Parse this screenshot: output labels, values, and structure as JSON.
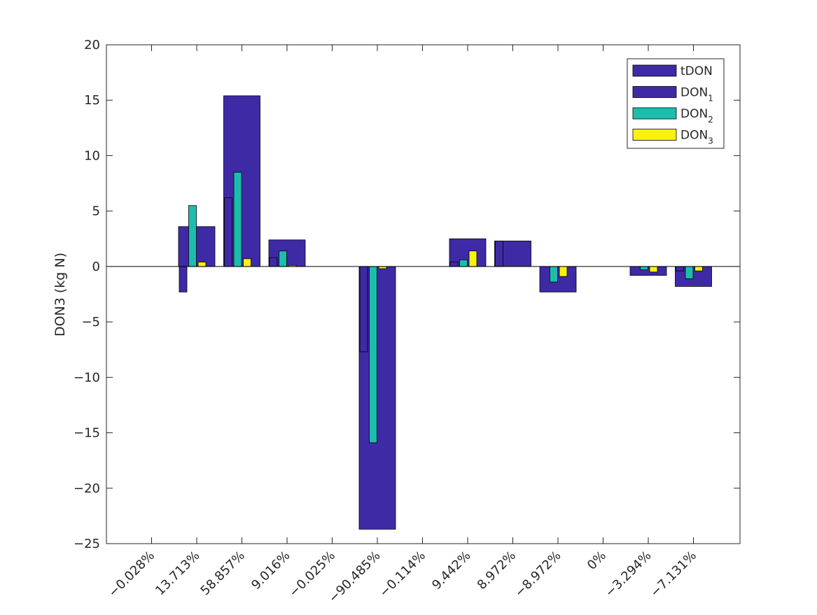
{
  "chart_data": {
    "type": "bar",
    "title": "",
    "xlabel": "",
    "ylabel": "DON3 (kg N)",
    "ylim": [
      -25,
      20
    ],
    "yticks": [
      -25,
      -20,
      -15,
      -10,
      -5,
      0,
      5,
      10,
      15,
      20
    ],
    "grid": false,
    "legend_position": "top-right",
    "categories": [
      "−0.028%",
      "13.713%",
      "58.857%",
      "9.016%",
      "−0.025%",
      "−90.485%",
      "−0.114%",
      "9.442%",
      "8.972%",
      "−8.972%",
      "0%",
      "−3.294%",
      "−7.131%"
    ],
    "series": [
      {
        "name": "tDON",
        "color": "#3f2aa6",
        "values": [
          0,
          3.6,
          15.4,
          2.4,
          0,
          -23.7,
          0,
          2.5,
          2.3,
          -2.3,
          0,
          -0.8,
          -1.8
        ]
      },
      {
        "name": "DON1",
        "color": "#3f2aa6",
        "values": [
          0,
          -2.3,
          6.2,
          0.8,
          0,
          -7.7,
          0,
          0.4,
          2.3,
          0,
          0,
          0,
          -0.4
        ]
      },
      {
        "name": "DON2",
        "color": "#1dbdae",
        "values": [
          0,
          5.5,
          8.5,
          1.4,
          0,
          -15.9,
          0,
          0.6,
          0,
          -1.4,
          0,
          -0.3,
          -1.1
        ]
      },
      {
        "name": "DON3",
        "color": "#f9f20f",
        "values": [
          0,
          0.4,
          0.7,
          0.1,
          0,
          -0.2,
          0,
          1.4,
          0,
          -0.9,
          0,
          -0.5,
          -0.4
        ]
      }
    ],
    "legend": {
      "entries": [
        {
          "base": "tDON",
          "sub": ""
        },
        {
          "base": "DON",
          "sub": "1"
        },
        {
          "base": "DON",
          "sub": "2"
        },
        {
          "base": "DON",
          "sub": "3"
        }
      ]
    }
  }
}
